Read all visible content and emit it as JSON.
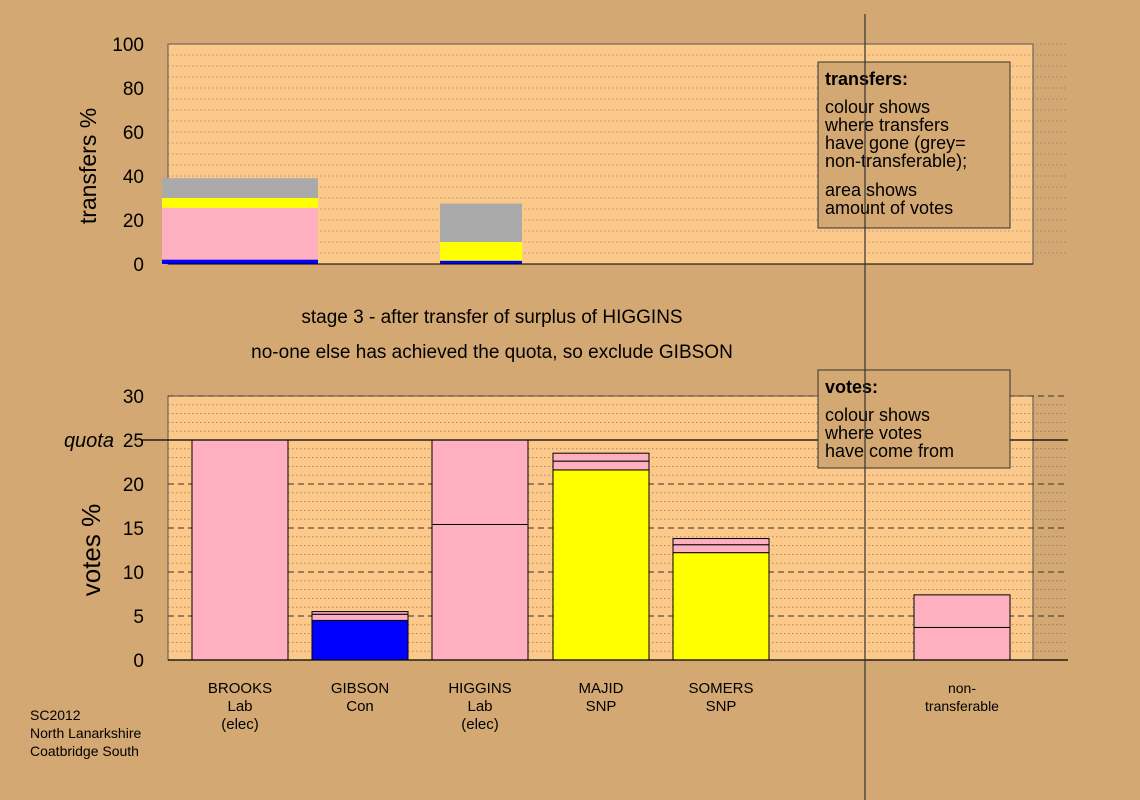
{
  "colors": {
    "background": "#d4a872",
    "plot_background": "#fcc98a",
    "box_fill": "#d4a872",
    "pink": "#ffb0c0",
    "yellow": "#ffff00",
    "grey": "#aaaaaa",
    "blue": "#0000ff"
  },
  "caption": {
    "line1": "stage 3 - after transfer of surplus of HIGGINS",
    "line2": "no-one else has achieved the quota, so exclude GIBSON"
  },
  "footer": [
    "SC2012",
    "North Lanarkshire",
    "Coatbridge South"
  ],
  "chart_data": [
    {
      "id": "transfers",
      "type": "bar",
      "stacked": true,
      "ylabel": "transfers %",
      "ylim": [
        0,
        100
      ],
      "yticks": [
        "0",
        "20",
        "40",
        "60",
        "80",
        "100"
      ],
      "ytick_values": [
        0,
        20,
        40,
        60,
        80,
        100
      ],
      "grid": true,
      "legend_box": {
        "title": "transfers:",
        "lines1": [
          "colour shows",
          "where transfers",
          "have gone (grey=",
          "non-transferable);"
        ],
        "lines2": [
          "area shows",
          "amount of votes"
        ],
        "placement": "top-right"
      },
      "bars": [
        {
          "from": "BROOKS",
          "segments": [
            {
              "color": "blue",
              "value": 2
            },
            {
              "color": "pink",
              "value": 23.5
            },
            {
              "color": "yellow",
              "value": 4.5
            },
            {
              "color": "grey",
              "value": 9
            }
          ]
        },
        {
          "from": "HIGGINS",
          "segments": [
            {
              "color": "blue",
              "value": 1.5
            },
            {
              "color": "yellow",
              "value": 8.5
            },
            {
              "color": "grey",
              "value": 17.5
            }
          ]
        }
      ]
    },
    {
      "id": "votes",
      "type": "bar",
      "stacked": true,
      "ylabel": "votes %",
      "ylim": [
        0,
        30
      ],
      "yticks": [
        "0",
        "5",
        "10",
        "15",
        "20",
        "25",
        "30"
      ],
      "ytick_values": [
        0,
        5,
        10,
        15,
        20,
        25,
        30
      ],
      "quota": {
        "label": "quota",
        "value": 25
      },
      "grid": true,
      "legend_box": {
        "title": "votes:",
        "lines1": [
          "colour shows",
          "where votes",
          "have come from"
        ],
        "placement": "top-right"
      },
      "categories": [
        {
          "label": [
            "BROOKS",
            "Lab",
            "(elec)"
          ],
          "segments": [
            {
              "color": "pink",
              "value": 25
            }
          ]
        },
        {
          "label": [
            "GIBSON",
            "Con"
          ],
          "segments": [
            {
              "color": "blue",
              "value": 4.5
            },
            {
              "color": "pink",
              "value": 0.7
            },
            {
              "color": "pink",
              "value": 0.3
            }
          ]
        },
        {
          "label": [
            "HIGGINS",
            "Lab",
            "(elec)"
          ],
          "segments": [
            {
              "color": "pink",
              "value": 15.4
            },
            {
              "color": "pink",
              "value": 9.6
            }
          ]
        },
        {
          "label": [
            "MAJID",
            "SNP"
          ],
          "segments": [
            {
              "color": "yellow",
              "value": 21.6
            },
            {
              "color": "pink",
              "value": 1.0
            },
            {
              "color": "pink",
              "value": 0.9
            }
          ]
        },
        {
          "label": [
            "SOMERS",
            "SNP"
          ],
          "segments": [
            {
              "color": "yellow",
              "value": 12.2
            },
            {
              "color": "pink",
              "value": 0.9
            },
            {
              "color": "pink",
              "value": 0.7
            }
          ]
        },
        {
          "label": [],
          "segments": []
        },
        {
          "label": [
            "non-",
            "transferable"
          ],
          "segments": [
            {
              "color": "pink",
              "value": 3.7
            },
            {
              "color": "pink",
              "value": 3.7
            }
          ]
        }
      ]
    }
  ]
}
